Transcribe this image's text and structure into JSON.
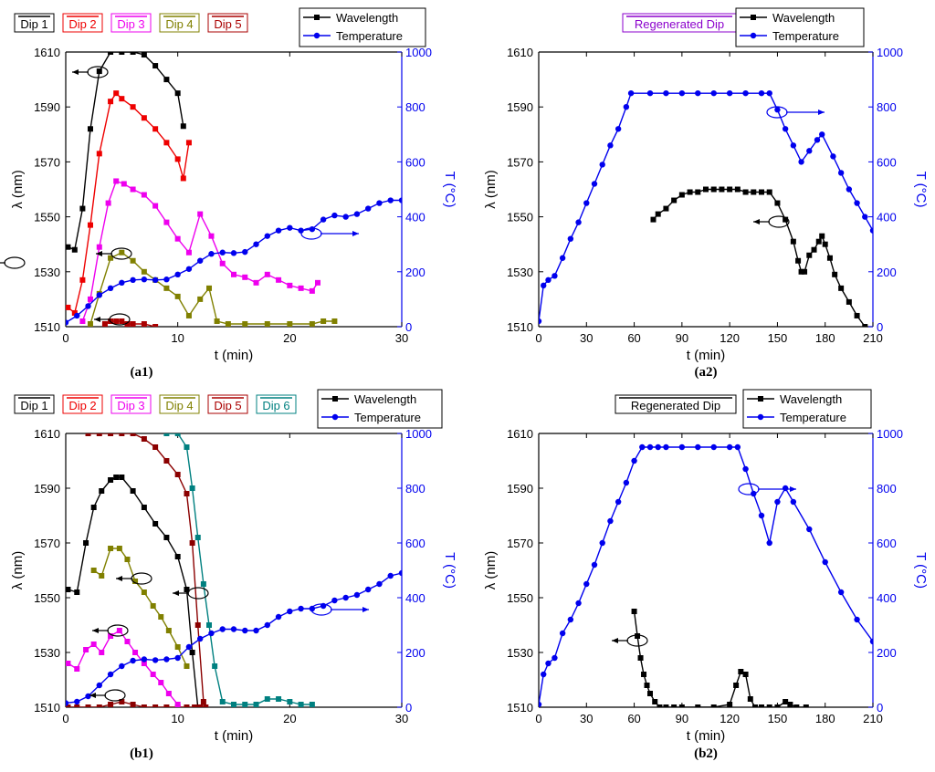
{
  "chart_data": [
    {
      "panel": "(a1)",
      "type": "line",
      "xlabel": "t (min)",
      "ylabel_left": "λ (nm)",
      "ylabel_right": "T (°C)",
      "xlim": [
        0,
        30
      ],
      "ylim_left": [
        1510,
        1610
      ],
      "ylim_right": [
        0,
        1000
      ],
      "xticks": [
        0,
        10,
        20,
        30
      ],
      "yticks_left": [
        1510,
        1530,
        1550,
        1570,
        1590,
        1610
      ],
      "yticks_right": [
        0,
        200,
        400,
        600,
        800,
        1000
      ],
      "dip_legend": [
        "Dip 1",
        "Dip 2",
        "Dip 3",
        "Dip 4",
        "Dip 5"
      ],
      "marker_legend": [
        "Wavelength",
        "Temperature"
      ],
      "series": [
        {
          "name": "Dip 1",
          "axis": "left",
          "color": "#000000",
          "marker": "square",
          "x": [
            0.2,
            0.8,
            1.5,
            2.2,
            3.0,
            4.0,
            5.0,
            6.0,
            7.0,
            8.0,
            9.0,
            10.0,
            10.5
          ],
          "y": [
            1539,
            1538,
            1553,
            1582,
            1603,
            1610,
            1610,
            1610,
            1609,
            1605,
            1600,
            1595,
            1583
          ]
        },
        {
          "name": "Dip 2",
          "axis": "left",
          "color": "#ee0000",
          "marker": "square",
          "x": [
            0.2,
            0.8,
            1.5,
            2.2,
            3.0,
            4.0,
            4.5,
            5.0,
            6.0,
            7.0,
            8.0,
            9.0,
            10.0,
            10.5,
            11.0
          ],
          "y": [
            1517,
            1515,
            1527,
            1547,
            1573,
            1592,
            1595,
            1593,
            1590,
            1586,
            1582,
            1577,
            1571,
            1564,
            1577
          ]
        },
        {
          "name": "Dip 3",
          "axis": "left",
          "color": "#ee00ee",
          "marker": "square",
          "x": [
            1.5,
            2.2,
            3.0,
            3.8,
            4.5,
            5.2,
            6.0,
            7.0,
            8.0,
            9.0,
            10.0,
            11.0,
            12.0,
            13.0,
            14.0,
            15.0,
            16.0,
            17.0,
            18.0,
            19.0,
            20.0,
            21.0,
            22.0,
            22.5
          ],
          "y": [
            1512,
            1520,
            1539,
            1555,
            1563,
            1562,
            1560,
            1558,
            1554,
            1548,
            1542,
            1537,
            1551,
            1543,
            1533,
            1529,
            1528,
            1526,
            1529,
            1527,
            1525,
            1524,
            1523,
            1526
          ]
        },
        {
          "name": "Dip 4",
          "axis": "left",
          "color": "#808000",
          "marker": "square",
          "x": [
            2.2,
            3.0,
            4.0,
            5.0,
            6.0,
            7.0,
            8.0,
            9.0,
            10.0,
            11.0,
            12.0,
            12.8,
            13.5,
            14.5,
            16.0,
            18.0,
            20.0,
            22.0,
            23.0,
            24.0
          ],
          "y": [
            1511,
            1522,
            1535,
            1537,
            1534,
            1530,
            1527,
            1524,
            1521,
            1514,
            1520,
            1524,
            1512,
            1511,
            1511,
            1511,
            1511,
            1511,
            1512,
            1512
          ]
        },
        {
          "name": "Dip 5",
          "axis": "left",
          "color": "#aa0000",
          "marker": "square",
          "x": [
            3.5,
            4.0,
            4.5,
            5.0,
            5.5,
            6.0,
            7.0,
            8.0
          ],
          "y": [
            1511,
            1512,
            1512,
            1512,
            1511,
            1511,
            1511,
            1510
          ]
        },
        {
          "name": "Temperature",
          "axis": "right",
          "color": "#0000ee",
          "marker": "circle",
          "x": [
            0,
            1,
            2,
            3,
            4,
            5,
            6,
            7,
            8,
            9,
            10,
            11,
            12,
            13,
            14,
            15,
            16,
            17,
            18,
            19,
            20,
            21,
            22,
            23,
            24,
            25,
            26,
            27,
            28,
            29,
            30
          ],
          "y": [
            15,
            40,
            75,
            115,
            140,
            160,
            170,
            172,
            170,
            172,
            190,
            210,
            240,
            265,
            270,
            268,
            272,
            300,
            330,
            350,
            360,
            350,
            355,
            390,
            405,
            400,
            410,
            430,
            450,
            460,
            460
          ]
        }
      ]
    },
    {
      "panel": "(a2)",
      "type": "line",
      "xlabel": "t (min)",
      "ylabel_left": "λ (nm)",
      "ylabel_right": "T (°C)",
      "xlim": [
        0,
        210
      ],
      "ylim_left": [
        1510,
        1610
      ],
      "ylim_right": [
        0,
        1000
      ],
      "xticks": [
        0,
        30,
        60,
        90,
        120,
        150,
        180,
        210
      ],
      "yticks_left": [
        1510,
        1530,
        1550,
        1570,
        1590,
        1610
      ],
      "yticks_right": [
        0,
        200,
        400,
        600,
        800,
        1000
      ],
      "dip_legend": [
        "Regenerated Dip"
      ],
      "marker_legend": [
        "Wavelength",
        "Temperature"
      ],
      "series": [
        {
          "name": "Wavelength",
          "axis": "left",
          "color": "#000000",
          "marker": "square",
          "x": [
            72,
            75,
            80,
            85,
            90,
            95,
            100,
            105,
            110,
            115,
            120,
            125,
            130,
            135,
            140,
            145,
            150,
            155,
            160,
            163,
            165,
            167,
            170,
            173,
            176,
            178,
            180,
            183,
            186,
            190,
            195,
            200,
            205
          ],
          "y": [
            1549,
            1551,
            1553,
            1556,
            1558,
            1559,
            1559,
            1560,
            1560,
            1560,
            1560,
            1560,
            1559,
            1559,
            1559,
            1559,
            1555,
            1549,
            1541,
            1534,
            1530,
            1530,
            1536,
            1538,
            1541,
            1543,
            1540,
            1535,
            1529,
            1524,
            1519,
            1514,
            1510
          ]
        },
        {
          "name": "Temperature",
          "axis": "right",
          "color": "#0000ee",
          "marker": "circle",
          "x": [
            0,
            3,
            6,
            10,
            15,
            20,
            25,
            30,
            35,
            40,
            45,
            50,
            55,
            58,
            70,
            80,
            90,
            100,
            110,
            120,
            130,
            140,
            145,
            150,
            155,
            160,
            165,
            170,
            175,
            178,
            185,
            190,
            195,
            200,
            205,
            210
          ],
          "y": [
            20,
            150,
            170,
            185,
            250,
            320,
            380,
            450,
            520,
            590,
            660,
            720,
            800,
            850,
            850,
            850,
            850,
            850,
            850,
            850,
            850,
            850,
            850,
            790,
            720,
            660,
            600,
            640,
            680,
            700,
            620,
            560,
            500,
            450,
            400,
            350
          ]
        }
      ]
    },
    {
      "panel": "(b1)",
      "type": "line",
      "xlabel": "t (min)",
      "ylabel_left": "λ (nm)",
      "ylabel_right": "T (°C)",
      "xlim": [
        0,
        30
      ],
      "ylim_left": [
        1510,
        1610
      ],
      "ylim_right": [
        0,
        1000
      ],
      "xticks": [
        0,
        10,
        20,
        30
      ],
      "yticks_left": [
        1510,
        1530,
        1550,
        1570,
        1590,
        1610
      ],
      "yticks_right": [
        0,
        200,
        400,
        600,
        800,
        1000
      ],
      "dip_legend": [
        "Dip 1",
        "Dip 2",
        "Dip 3",
        "Dip 4",
        "Dip 5",
        "Dip 6"
      ],
      "marker_legend": [
        "Wavelength",
        "Temperature"
      ],
      "series": [
        {
          "name": "Dip 1",
          "axis": "left",
          "color": "#000000",
          "marker": "square",
          "x": [
            0.2,
            1.0,
            1.8,
            2.5,
            3.2,
            4.0,
            4.5,
            5.0,
            6.0,
            7.0,
            8.0,
            9.0,
            10.0,
            10.8,
            11.3,
            11.8
          ],
          "y": [
            1553,
            1552,
            1570,
            1583,
            1589,
            1593,
            1594,
            1594,
            1589,
            1583,
            1577,
            1572,
            1565,
            1553,
            1530,
            1510
          ]
        },
        {
          "name": "Dip 2",
          "axis": "left",
          "color": "#8b0000",
          "marker": "square",
          "x": [
            0.2,
            1.0,
            2.0,
            3.0,
            4.0,
            5.0,
            6.0,
            7.0,
            8.0,
            9.0,
            10.0,
            10.8,
            11.5,
            12.0,
            12.5
          ],
          "y": [
            1510,
            1510,
            1510,
            1510,
            1511,
            1512,
            1511,
            1510,
            1510,
            1510,
            1510,
            1510,
            1510,
            1510,
            1510
          ]
        },
        {
          "name": "Dip 5",
          "axis": "left",
          "color": "#8b0000",
          "marker": "square",
          "x": [
            2.0,
            3.0,
            4.0,
            5.0,
            6.0,
            7.0,
            8.0,
            9.0,
            10.0,
            10.8,
            11.3,
            11.8,
            12.3
          ],
          "y": [
            1610,
            1610,
            1610,
            1610,
            1610,
            1608,
            1605,
            1600,
            1595,
            1588,
            1570,
            1540,
            1512
          ]
        },
        {
          "name": "Dip 3",
          "axis": "left",
          "color": "#ee00ee",
          "marker": "square",
          "x": [
            0.2,
            1.0,
            1.8,
            2.5,
            3.2,
            4.0,
            4.8,
            5.5,
            6.2,
            7.0,
            7.8,
            8.5,
            9.2,
            10.0
          ],
          "y": [
            1526,
            1524,
            1531,
            1533,
            1530,
            1536,
            1538,
            1534,
            1530,
            1526,
            1522,
            1519,
            1515,
            1511
          ]
        },
        {
          "name": "Dip 4",
          "axis": "left",
          "color": "#808000",
          "marker": "square",
          "x": [
            2.5,
            3.2,
            4.0,
            4.8,
            5.5,
            6.2,
            7.0,
            7.8,
            8.5,
            9.2,
            10.0,
            10.8
          ],
          "y": [
            1560,
            1558,
            1568,
            1568,
            1564,
            1556,
            1552,
            1547,
            1543,
            1538,
            1532,
            1525
          ]
        },
        {
          "name": "Dip 6",
          "axis": "left",
          "color": "#008080",
          "marker": "square",
          "x": [
            9.0,
            10.0,
            10.8,
            11.3,
            11.8,
            12.3,
            12.8,
            13.3,
            14.0,
            15.0,
            16.0,
            17.0,
            18.0,
            19.0,
            20.0,
            21.0,
            22.0
          ],
          "y": [
            1610,
            1610,
            1605,
            1590,
            1572,
            1555,
            1540,
            1525,
            1512,
            1511,
            1511,
            1511,
            1513,
            1513,
            1512,
            1511,
            1511
          ]
        },
        {
          "name": "Temperature",
          "axis": "right",
          "color": "#0000ee",
          "marker": "circle",
          "x": [
            0,
            1,
            2,
            3,
            4,
            5,
            6,
            7,
            8,
            9,
            10,
            11,
            12,
            13,
            14,
            15,
            16,
            17,
            18,
            19,
            20,
            21,
            22,
            23,
            24,
            25,
            26,
            27,
            28,
            29,
            30
          ],
          "y": [
            15,
            20,
            40,
            80,
            120,
            150,
            170,
            175,
            172,
            175,
            180,
            220,
            250,
            270,
            285,
            285,
            280,
            280,
            300,
            330,
            350,
            360,
            360,
            370,
            390,
            400,
            410,
            430,
            450,
            480,
            490
          ]
        }
      ]
    },
    {
      "panel": "(b2)",
      "type": "line",
      "xlabel": "t (min)",
      "ylabel_left": "λ (nm)",
      "ylabel_right": "T (°C)",
      "xlim": [
        0,
        210
      ],
      "ylim_left": [
        1510,
        1610
      ],
      "ylim_right": [
        0,
        1000
      ],
      "xticks": [
        0,
        30,
        60,
        90,
        120,
        150,
        180,
        210
      ],
      "yticks_left": [
        1510,
        1530,
        1550,
        1570,
        1590,
        1610
      ],
      "yticks_right": [
        0,
        200,
        400,
        600,
        800,
        1000
      ],
      "dip_legend": [
        "Regenerated Dip"
      ],
      "marker_legend": [
        "Wavelength",
        "Temperature"
      ],
      "series": [
        {
          "name": "Wavelength",
          "axis": "left",
          "color": "#000000",
          "marker": "square",
          "x": [
            60,
            62,
            64,
            66,
            68,
            70,
            73,
            76,
            80,
            85,
            90,
            100,
            110,
            120,
            124,
            127,
            130,
            133,
            136,
            140,
            145,
            150,
            155,
            158,
            162,
            168
          ],
          "y": [
            1545,
            1536,
            1528,
            1522,
            1518,
            1515,
            1512,
            1510,
            1510,
            1510,
            1510,
            1510,
            1510,
            1511,
            1518,
            1523,
            1522,
            1513,
            1510,
            1510,
            1510,
            1510,
            1512,
            1511,
            1510,
            1510
          ]
        },
        {
          "name": "Temperature",
          "axis": "right",
          "color": "#0000ee",
          "marker": "circle",
          "x": [
            0,
            3,
            6,
            10,
            15,
            20,
            25,
            30,
            35,
            40,
            45,
            50,
            55,
            60,
            65,
            70,
            75,
            80,
            90,
            100,
            110,
            120,
            125,
            130,
            135,
            140,
            145,
            150,
            155,
            160,
            170,
            180,
            190,
            200,
            210
          ],
          "y": [
            10,
            120,
            160,
            180,
            270,
            320,
            380,
            450,
            520,
            600,
            680,
            750,
            820,
            900,
            950,
            950,
            950,
            950,
            950,
            950,
            950,
            950,
            950,
            870,
            780,
            700,
            600,
            750,
            800,
            750,
            650,
            530,
            420,
            320,
            240
          ]
        }
      ]
    }
  ]
}
